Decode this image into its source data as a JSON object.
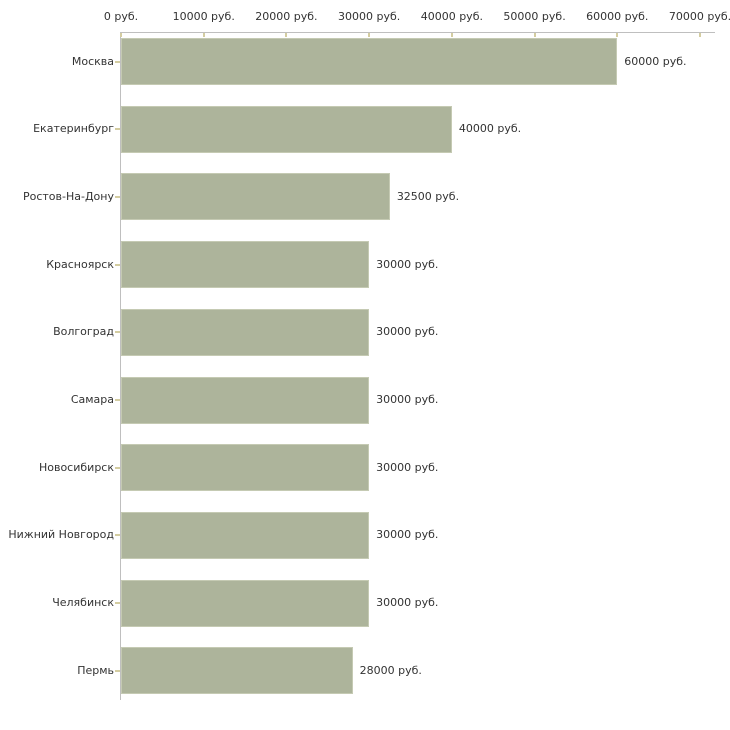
{
  "chart_data": {
    "type": "bar",
    "orientation": "horizontal",
    "title": "",
    "categories": [
      "Москва",
      "Екатеринбург",
      "Ростов-На-Дону",
      "Красноярск",
      "Волгоград",
      "Самара",
      "Новосибирск",
      "Нижний Новгород",
      "Челябинск",
      "Пермь"
    ],
    "values": [
      60000,
      40000,
      32500,
      30000,
      30000,
      30000,
      30000,
      30000,
      30000,
      28000
    ],
    "value_labels": [
      "60000 руб.",
      "40000 руб.",
      "32500 руб.",
      "30000 руб.",
      "30000 руб.",
      "30000 руб.",
      "30000 руб.",
      "30000 руб.",
      "30000 руб.",
      "28000 руб."
    ],
    "x_tick_values": [
      0,
      10000,
      20000,
      30000,
      40000,
      50000,
      60000,
      70000
    ],
    "x_tick_labels": [
      "0 руб.",
      "10000 руб.",
      "20000 руб.",
      "30000 руб.",
      "40000 руб.",
      "50000 руб.",
      "60000 руб.",
      "70000 руб."
    ],
    "xlim": [
      0,
      70000
    ],
    "unit": "руб.",
    "legend": null,
    "grid": false,
    "colors": {
      "bar_fill": "#adb49b",
      "bar_border": "#c5cab3",
      "axis_line": "#bfbfbf",
      "tick_mark": "#d4cda1",
      "text": "#333333",
      "background": "#ffffff"
    }
  }
}
